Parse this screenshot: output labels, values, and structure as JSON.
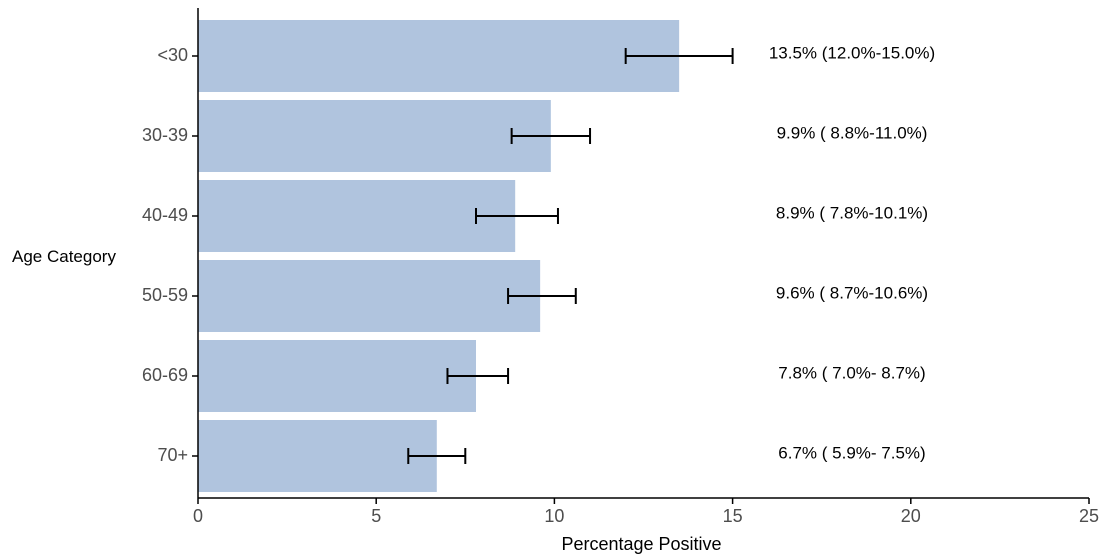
{
  "chart_data": {
    "type": "bar",
    "orientation": "horizontal",
    "title": "",
    "xlabel": "Percentage Positive",
    "ylabel": "Age Category",
    "xlim": [
      0,
      25
    ],
    "x_ticks": [
      "0",
      "5",
      "10",
      "15",
      "20",
      "25"
    ],
    "grid": false,
    "legend": "none",
    "categories": [
      "<30",
      "30-39",
      "40-49",
      "50-59",
      "60-69",
      "70+"
    ],
    "values": [
      13.5,
      9.9,
      8.9,
      9.6,
      7.8,
      6.7
    ],
    "ci_low": [
      12.0,
      8.8,
      7.8,
      8.7,
      7.0,
      5.9
    ],
    "ci_high": [
      15.0,
      11.0,
      10.1,
      10.6,
      8.7,
      7.5
    ],
    "labels": [
      "13.5% (12.0%-15.0%)",
      "9.9% ( 8.8%-11.0%)",
      "8.9% ( 7.8%-10.1%)",
      "9.6% ( 8.7%-10.6%)",
      "7.8% ( 7.0%- 8.7%)",
      "6.7% ( 5.9%- 7.5%)"
    ],
    "label_x": 15.5,
    "colors": {
      "bar": "#b0c4de",
      "axis": "#000000",
      "errorbar": "#000000"
    }
  }
}
